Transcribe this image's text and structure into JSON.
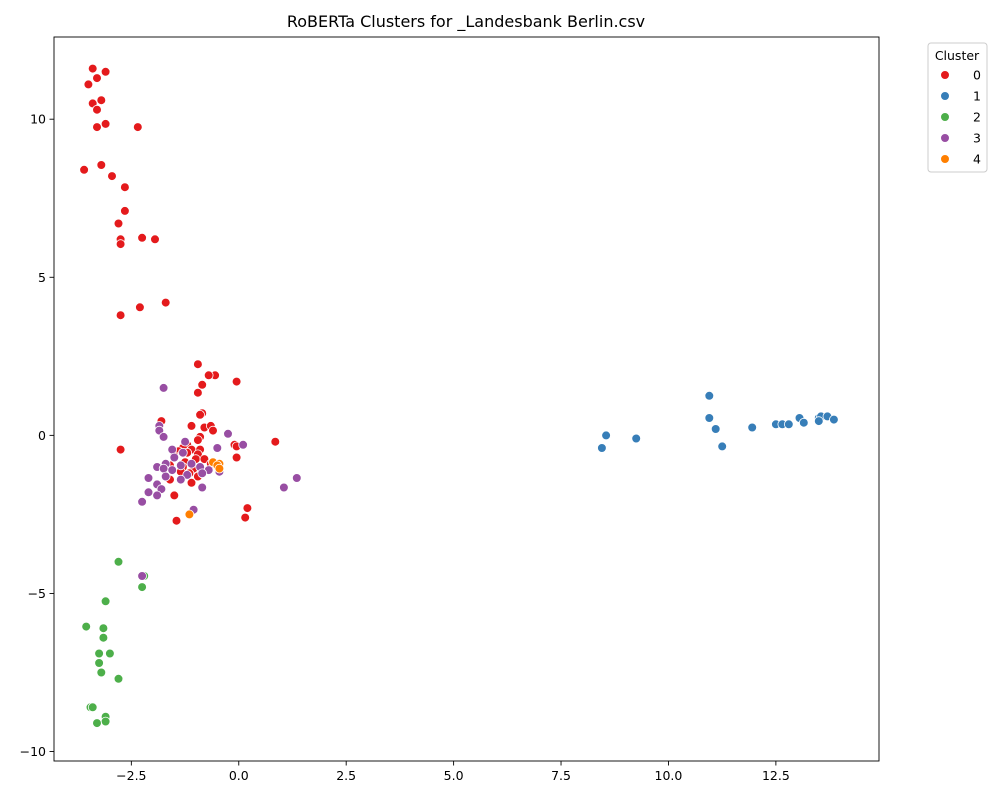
{
  "chart_data": {
    "type": "scatter",
    "title": "RoBERTa Clusters for _Landesbank Berlin.csv",
    "xlabel": "",
    "ylabel": "",
    "xlim": [
      -4.3,
      14.9
    ],
    "ylim": [
      -10.3,
      12.6
    ],
    "x_ticks": [
      -2.5,
      0,
      2.5,
      5,
      7.5,
      10,
      12.5
    ],
    "x_tick_labels": [
      "−2.5",
      "0.0",
      "2.5",
      "5.0",
      "7.5",
      "10.0",
      "12.5"
    ],
    "y_ticks": [
      -10,
      -5,
      0,
      5,
      10
    ],
    "y_tick_labels": [
      "−10",
      "−5",
      "0",
      "5",
      "10"
    ],
    "grid": false,
    "legend": {
      "title": "Cluster",
      "placement": "outside-top-right"
    },
    "series": [
      {
        "name": "0",
        "color": "#e41a1c",
        "points": [
          [
            -3.4,
            11.6
          ],
          [
            -3.1,
            11.5
          ],
          [
            -3.3,
            11.3
          ],
          [
            -3.5,
            11.1
          ],
          [
            -3.2,
            10.6
          ],
          [
            -3.4,
            10.5
          ],
          [
            -3.3,
            10.3
          ],
          [
            -3.1,
            9.85
          ],
          [
            -3.3,
            9.75
          ],
          [
            -2.35,
            9.75
          ],
          [
            -3.2,
            8.55
          ],
          [
            -3.6,
            8.4
          ],
          [
            -2.95,
            8.2
          ],
          [
            -2.65,
            7.85
          ],
          [
            -2.65,
            7.1
          ],
          [
            -2.8,
            6.7
          ],
          [
            -2.75,
            6.2
          ],
          [
            -2.75,
            6.05
          ],
          [
            -2.25,
            6.25
          ],
          [
            -1.95,
            6.2
          ],
          [
            -1.7,
            4.2
          ],
          [
            -2.3,
            4.05
          ],
          [
            -2.75,
            3.8
          ],
          [
            -0.95,
            2.25
          ],
          [
            -0.55,
            1.9
          ],
          [
            -0.7,
            1.9
          ],
          [
            -0.05,
            1.7
          ],
          [
            -0.85,
            1.6
          ],
          [
            -0.95,
            1.35
          ],
          [
            -0.85,
            0.7
          ],
          [
            -0.9,
            0.65
          ],
          [
            -1.8,
            0.45
          ],
          [
            -1.1,
            0.3
          ],
          [
            -0.8,
            0.25
          ],
          [
            -0.65,
            0.3
          ],
          [
            -0.6,
            0.15
          ],
          [
            -0.9,
            -0.05
          ],
          [
            -0.95,
            -0.15
          ],
          [
            0.85,
            -0.2
          ],
          [
            -1.2,
            -0.3
          ],
          [
            -0.1,
            -0.3
          ],
          [
            -0.05,
            -0.35
          ],
          [
            -1.3,
            -0.4
          ],
          [
            -1.1,
            -0.45
          ],
          [
            -2.75,
            -0.45
          ],
          [
            -0.9,
            -0.45
          ],
          [
            -1.4,
            -0.5
          ],
          [
            -1.2,
            -0.55
          ],
          [
            -0.95,
            -0.6
          ],
          [
            -0.05,
            -0.7
          ],
          [
            -1.5,
            -0.65
          ],
          [
            -1.0,
            -0.75
          ],
          [
            -0.8,
            -0.75
          ],
          [
            -1.25,
            -0.85
          ],
          [
            -0.65,
            -0.9
          ],
          [
            -1.6,
            -0.95
          ],
          [
            -1.3,
            -1.0
          ],
          [
            -1.05,
            -1.05
          ],
          [
            -0.85,
            -1.1
          ],
          [
            -1.35,
            -1.15
          ],
          [
            -1.15,
            -1.2
          ],
          [
            -0.95,
            -1.3
          ],
          [
            -1.6,
            -1.4
          ],
          [
            -1.1,
            -1.5
          ],
          [
            -1.5,
            -1.9
          ],
          [
            0.2,
            -2.3
          ],
          [
            0.15,
            -2.6
          ],
          [
            -1.45,
            -2.7
          ]
        ]
      },
      {
        "name": "1",
        "color": "#377eb8",
        "points": [
          [
            10.95,
            1.25
          ],
          [
            10.95,
            0.55
          ],
          [
            11.1,
            0.2
          ],
          [
            11.25,
            -0.35
          ],
          [
            8.55,
            0.0
          ],
          [
            8.45,
            -0.4
          ],
          [
            9.25,
            -0.1
          ],
          [
            11.95,
            0.25
          ],
          [
            12.5,
            0.35
          ],
          [
            12.65,
            0.35
          ],
          [
            12.8,
            0.35
          ],
          [
            13.05,
            0.55
          ],
          [
            13.15,
            0.4
          ],
          [
            13.5,
            0.55
          ],
          [
            13.55,
            0.6
          ],
          [
            13.7,
            0.6
          ],
          [
            13.85,
            0.5
          ],
          [
            13.5,
            0.45
          ]
        ]
      },
      {
        "name": "2",
        "color": "#4daf4a",
        "points": [
          [
            -2.8,
            -4.0
          ],
          [
            -2.2,
            -4.45
          ],
          [
            -2.25,
            -4.8
          ],
          [
            -3.1,
            -5.25
          ],
          [
            -3.55,
            -6.05
          ],
          [
            -3.15,
            -6.1
          ],
          [
            -3.15,
            -6.4
          ],
          [
            -3.25,
            -6.9
          ],
          [
            -3.0,
            -6.9
          ],
          [
            -3.25,
            -7.2
          ],
          [
            -3.2,
            -7.5
          ],
          [
            -2.8,
            -7.7
          ],
          [
            -3.45,
            -8.6
          ],
          [
            -3.4,
            -8.6
          ],
          [
            -3.1,
            -8.9
          ],
          [
            -3.1,
            -9.05
          ],
          [
            -3.3,
            -9.1
          ]
        ]
      },
      {
        "name": "3",
        "color": "#984ea3",
        "points": [
          [
            -1.75,
            1.5
          ],
          [
            -1.85,
            0.3
          ],
          [
            -1.85,
            0.15
          ],
          [
            -1.75,
            -0.05
          ],
          [
            -0.25,
            0.05
          ],
          [
            0.1,
            -0.3
          ],
          [
            -1.55,
            -0.45
          ],
          [
            -0.5,
            -0.4
          ],
          [
            -1.25,
            -0.2
          ],
          [
            -1.3,
            -0.55
          ],
          [
            -1.5,
            -0.7
          ],
          [
            -1.7,
            -0.9
          ],
          [
            -1.9,
            -1.0
          ],
          [
            -1.75,
            -1.05
          ],
          [
            -1.55,
            -1.1
          ],
          [
            -1.35,
            -0.95
          ],
          [
            -1.1,
            -0.9
          ],
          [
            -0.9,
            -1.0
          ],
          [
            -0.7,
            -1.1
          ],
          [
            -0.45,
            -1.15
          ],
          [
            -0.6,
            -0.85
          ],
          [
            -1.2,
            -1.25
          ],
          [
            -1.35,
            -1.4
          ],
          [
            -1.7,
            -1.3
          ],
          [
            -0.85,
            -1.2
          ],
          [
            -2.1,
            -1.35
          ],
          [
            -1.9,
            -1.55
          ],
          [
            -1.8,
            -1.7
          ],
          [
            -2.1,
            -1.8
          ],
          [
            -1.9,
            -1.9
          ],
          [
            -0.85,
            -1.65
          ],
          [
            1.05,
            -1.65
          ],
          [
            1.35,
            -1.35
          ],
          [
            -2.25,
            -2.1
          ],
          [
            -1.05,
            -2.35
          ],
          [
            -2.25,
            -4.45
          ]
        ]
      },
      {
        "name": "4",
        "color": "#ff7f00",
        "points": [
          [
            -0.6,
            -0.85
          ],
          [
            -0.45,
            -0.9
          ],
          [
            -0.5,
            -0.95
          ],
          [
            -0.45,
            -1.05
          ],
          [
            -1.15,
            -2.5
          ]
        ]
      }
    ]
  }
}
